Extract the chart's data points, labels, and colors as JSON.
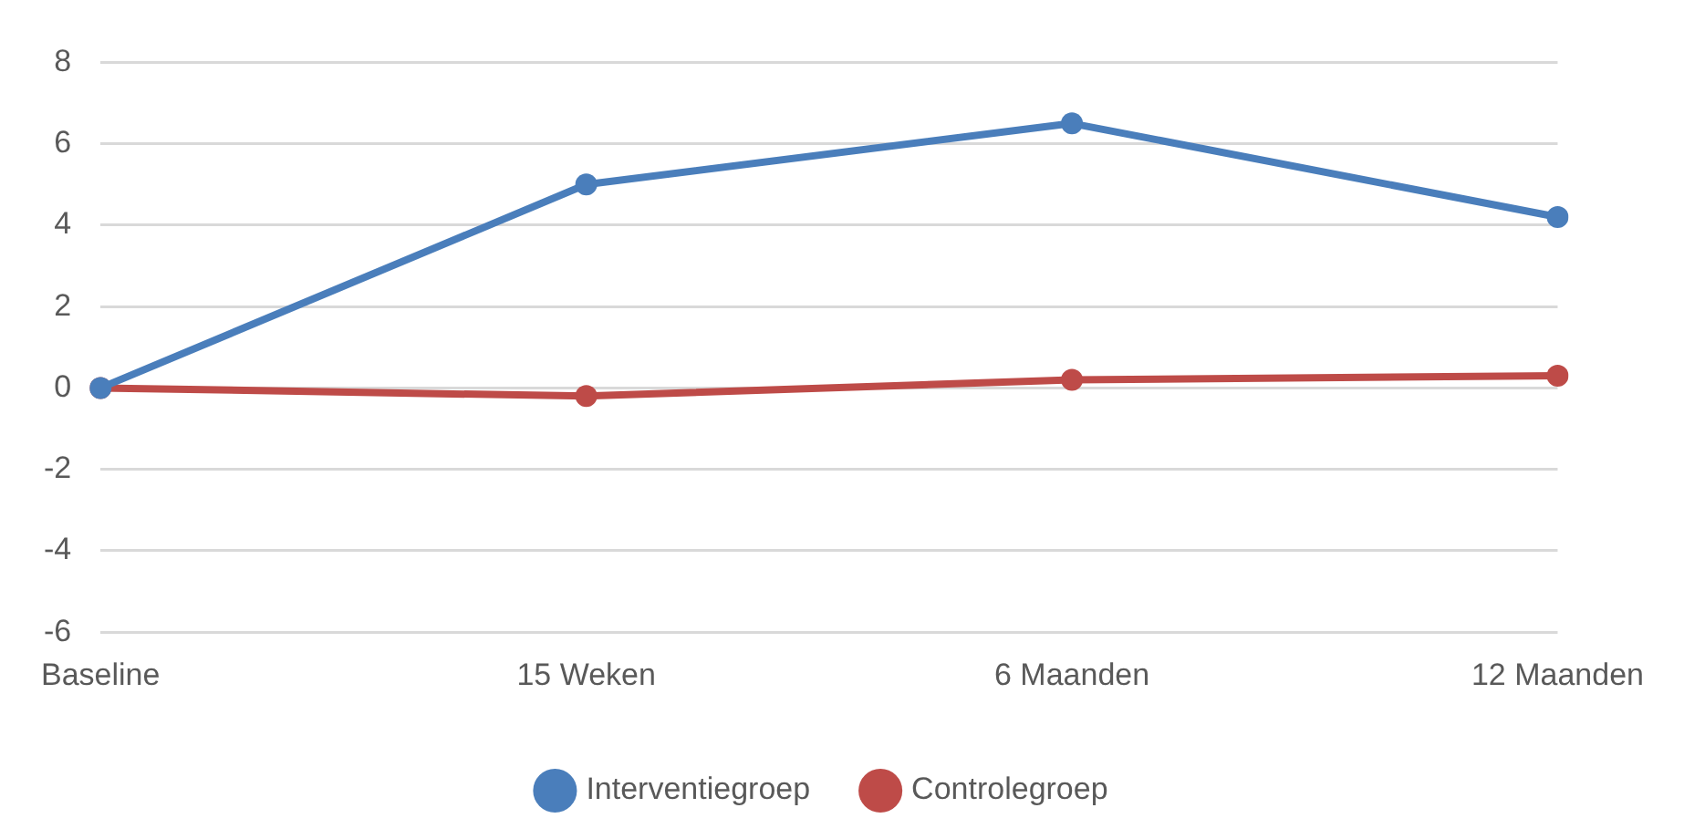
{
  "chart_data": {
    "type": "line",
    "categories": [
      "Baseline",
      "15 Weken",
      "6 Maanden",
      "12 Maanden"
    ],
    "series": [
      {
        "name": "Interventiegroep",
        "color": "#4a7ebb",
        "values": [
          0,
          5.0,
          6.5,
          4.2
        ]
      },
      {
        "name": "Controlegroep",
        "color": "#be4b48",
        "values": [
          0,
          -0.2,
          0.2,
          0.3
        ]
      }
    ],
    "ylim": [
      -6,
      8
    ],
    "yticks": [
      -6,
      -4,
      -2,
      0,
      2,
      4,
      6,
      8
    ],
    "grid": "y",
    "legend": "bottom",
    "marker": "circle",
    "line_style": "solid"
  }
}
